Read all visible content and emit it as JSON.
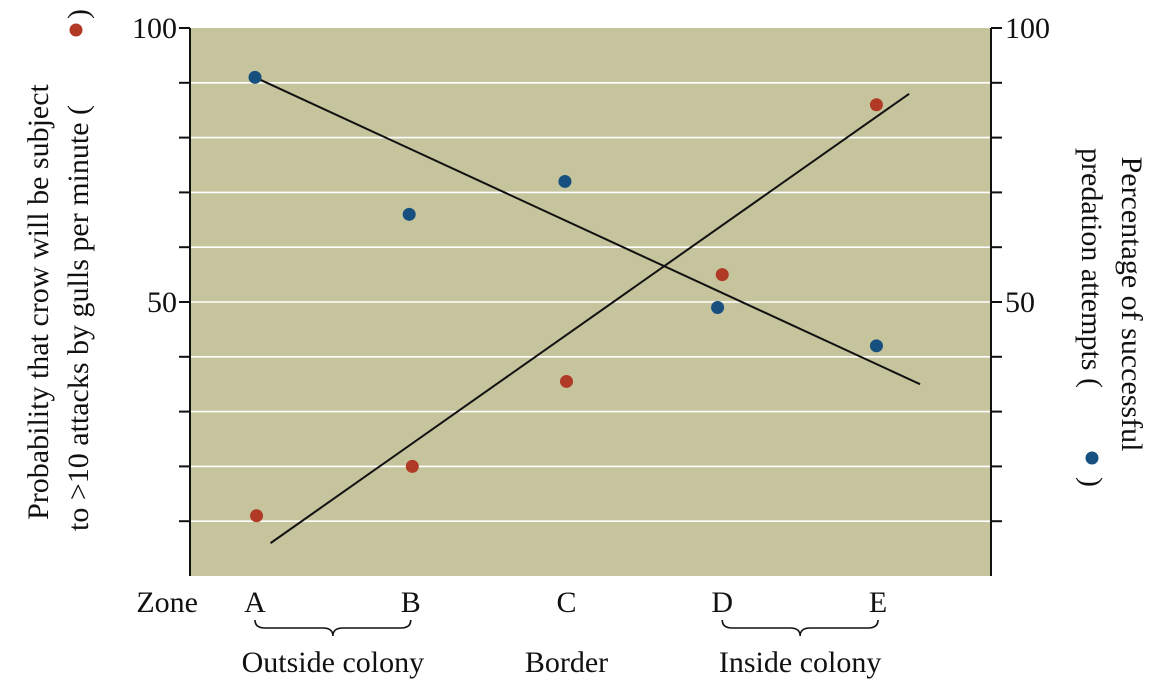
{
  "colors": {
    "plot_bg": "#c5c49d",
    "gridline": "#ffffff",
    "red_series": "#b03a26",
    "blue_series": "#174f7f",
    "line": "#111111"
  },
  "chart_data": {
    "type": "scatter",
    "zone_axis_label": "Zone",
    "categories": [
      "A",
      "B",
      "C",
      "D",
      "E"
    ],
    "x_positions": [
      1,
      2,
      3,
      4,
      5
    ],
    "xlim": [
      0.5,
      5.9
    ],
    "left_axis": {
      "label_line1": "Probability that crow will be subject",
      "label_line2": "to >10 attacks by gulls per minute (",
      "label_close": ")",
      "ylim": [
        0,
        100
      ],
      "ticks": [
        50,
        100
      ],
      "tick_labels": [
        "50",
        "100"
      ]
    },
    "right_axis": {
      "label_line1": "Percentage of successful",
      "label_line2": "predation attempts (",
      "label_close": ")",
      "ylim": [
        0,
        100
      ],
      "ticks": [
        50,
        100
      ],
      "tick_labels": [
        "50",
        "100"
      ]
    },
    "grid_step": 10,
    "groups": [
      {
        "label": "Outside colony",
        "from": 1,
        "to": 2
      },
      {
        "label": "Border",
        "from": 3,
        "to": 3
      },
      {
        "label": "Inside colony",
        "from": 4,
        "to": 5
      }
    ],
    "series": [
      {
        "marker": "red",
        "axis": "left",
        "x": [
          1.01,
          2.01,
          3.0,
          4.0,
          4.99
        ],
        "values": [
          11,
          20,
          35.5,
          55,
          86
        ],
        "trend": {
          "x": [
            1.1,
            5.2
          ],
          "y": [
            6,
            88
          ]
        }
      },
      {
        "marker": "blue",
        "axis": "right",
        "x": [
          1.0,
          1.99,
          2.99,
          3.97,
          4.99
        ],
        "values": [
          91,
          66,
          72,
          49,
          42
        ],
        "trend": {
          "x": [
            1.0,
            5.27
          ],
          "y": [
            91,
            35
          ]
        }
      }
    ]
  }
}
